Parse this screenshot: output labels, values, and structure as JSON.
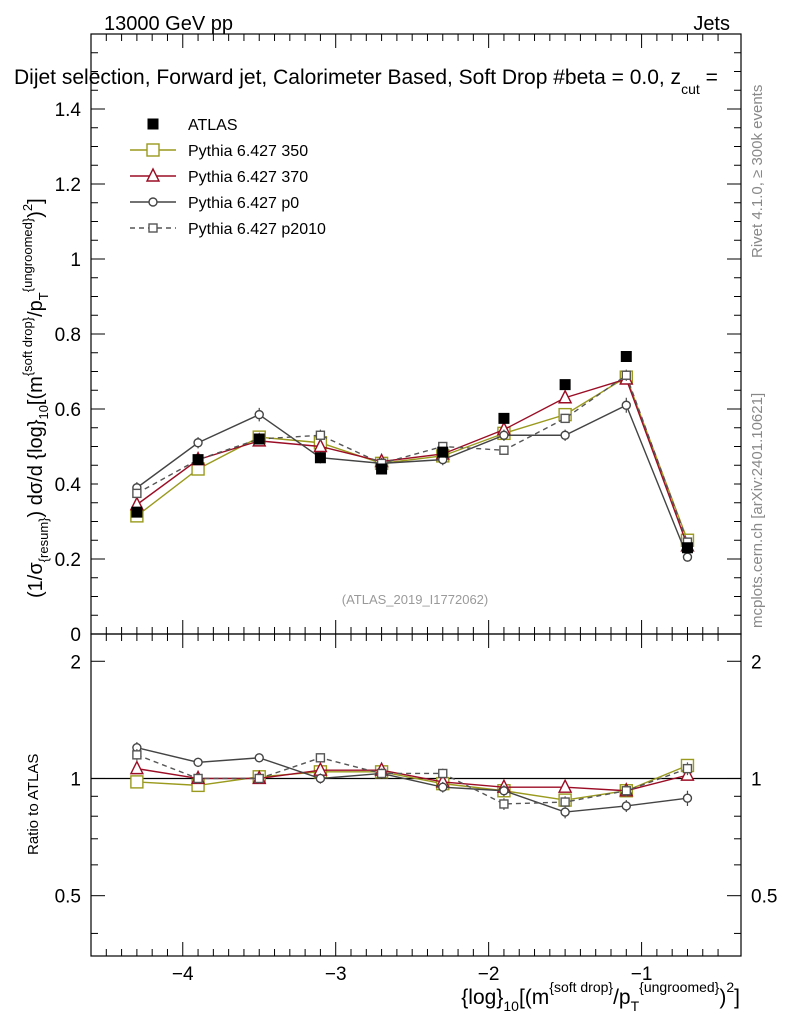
{
  "header": {
    "energy": "13000 GeV pp",
    "process": "Jets",
    "title": "Dijet selection, Forward jet, Calorimeter Based, Soft Drop #beta = 0.0, z",
    "title_sub": "cut",
    "title_tail": " ="
  },
  "side_labels": {
    "rivet": "Rivet 4.1.0, ≥ 300k events",
    "mcplots": "mcplots.cern.ch [arXiv:2401.10621]"
  },
  "watermark": "(ATLAS_2019_I1772062)",
  "colors": {
    "atlas": "#000000",
    "p350": "#9a9a1e",
    "p370": "#9b0d25",
    "p0": "#444444",
    "p2010": "#555555"
  },
  "chart_data": [
    {
      "type": "line",
      "panel": "main",
      "ylabel": "(1/σ{resum}) dσ/d {log}10[(m{soft drop}/pT{ungroomed})2]",
      "xlim": [
        -4.6,
        -0.35
      ],
      "ylim": [
        0,
        1.6
      ],
      "yticks": [
        0,
        0.2,
        0.4,
        0.6,
        0.8,
        1,
        1.2,
        1.4
      ],
      "ytick_labels": [
        "0",
        "0.2",
        "0.4",
        "0.6",
        "0.8",
        "1",
        "1.2",
        "1.4"
      ],
      "legend_position": "top-left",
      "x": [
        -4.3,
        -3.9,
        -3.5,
        -3.1,
        -2.7,
        -2.3,
        -1.9,
        -1.5,
        -1.1,
        -0.7
      ],
      "series": [
        {
          "name": "ATLAS",
          "key": "atlas",
          "values": [
            0.325,
            0.465,
            0.52,
            0.47,
            0.44,
            0.485,
            0.575,
            0.665,
            0.74,
            0.23
          ]
        },
        {
          "name": "Pythia 6.427 350",
          "key": "p350",
          "values": [
            0.315,
            0.44,
            0.525,
            0.51,
            0.455,
            0.475,
            0.535,
            0.585,
            0.685,
            0.25
          ],
          "errors": [
            0.01,
            0.01,
            0.01,
            0.01,
            0.01,
            0.01,
            0.01,
            0.01,
            0.01,
            0.01
          ]
        },
        {
          "name": "Pythia 6.427 370",
          "key": "p370",
          "values": [
            0.345,
            0.465,
            0.515,
            0.5,
            0.46,
            0.48,
            0.545,
            0.63,
            0.68,
            0.235
          ],
          "errors": [
            0.01,
            0.01,
            0.01,
            0.01,
            0.01,
            0.01,
            0.01,
            0.01,
            0.01,
            0.01
          ]
        },
        {
          "name": "Pythia 6.427 p0",
          "key": "p0",
          "values": [
            0.39,
            0.51,
            0.585,
            0.47,
            0.455,
            0.465,
            0.53,
            0.53,
            0.61,
            0.205
          ],
          "errors": [
            0.015,
            0.015,
            0.018,
            0.015,
            0.015,
            0.015,
            0.015,
            0.015,
            0.02,
            0.01
          ]
        },
        {
          "name": "Pythia 6.427 p2010",
          "key": "p2010",
          "values": [
            0.375,
            0.465,
            0.52,
            0.53,
            0.455,
            0.5,
            0.49,
            0.575,
            0.69,
            0.245
          ],
          "errors": [
            0.012,
            0.012,
            0.012,
            0.015,
            0.012,
            0.012,
            0.012,
            0.012,
            0.015,
            0.01
          ]
        }
      ]
    },
    {
      "type": "line",
      "panel": "ratio",
      "ylabel": "Ratio to ATLAS",
      "xlabel": "{log}10[(m{soft drop}/pT{ungroomed})2]",
      "xlim": [
        -4.6,
        -0.35
      ],
      "ylim": [
        0.35,
        2.35
      ],
      "yticks": [
        0.5,
        1,
        2
      ],
      "ytick_labels": [
        "0.5",
        "1",
        "2"
      ],
      "xticks": [
        -4,
        -3,
        -2,
        -1
      ],
      "xtick_labels": [
        "−4",
        "−3",
        "−2",
        "−1"
      ],
      "reference_line": 1,
      "x": [
        -4.3,
        -3.9,
        -3.5,
        -3.1,
        -2.7,
        -2.3,
        -1.9,
        -1.5,
        -1.1,
        -0.7
      ],
      "series": [
        {
          "name": "Pythia 6.427 350",
          "key": "p350",
          "values": [
            0.98,
            0.96,
            1.01,
            1.04,
            1.04,
            0.97,
            0.93,
            0.88,
            0.93,
            1.08
          ],
          "errors": [
            0.03,
            0.02,
            0.02,
            0.02,
            0.02,
            0.02,
            0.02,
            0.02,
            0.02,
            0.03
          ]
        },
        {
          "name": "Pythia 6.427 370",
          "key": "p370",
          "values": [
            1.06,
            1.0,
            1.0,
            1.05,
            1.05,
            0.98,
            0.95,
            0.95,
            0.93,
            1.02
          ],
          "errors": [
            0.03,
            0.02,
            0.02,
            0.02,
            0.02,
            0.02,
            0.02,
            0.02,
            0.02,
            0.03
          ]
        },
        {
          "name": "Pythia 6.427 p0",
          "key": "p0",
          "values": [
            1.2,
            1.1,
            1.13,
            1.0,
            1.03,
            0.95,
            0.93,
            0.82,
            0.85,
            0.89
          ],
          "errors": [
            0.04,
            0.03,
            0.03,
            0.03,
            0.03,
            0.03,
            0.03,
            0.03,
            0.03,
            0.04
          ]
        },
        {
          "name": "Pythia 6.427 p2010",
          "key": "p2010",
          "values": [
            1.15,
            1.0,
            1.0,
            1.13,
            1.03,
            1.03,
            0.86,
            0.87,
            0.93,
            1.06
          ],
          "errors": [
            0.04,
            0.03,
            0.03,
            0.03,
            0.03,
            0.03,
            0.03,
            0.03,
            0.03,
            0.04
          ]
        }
      ]
    }
  ]
}
